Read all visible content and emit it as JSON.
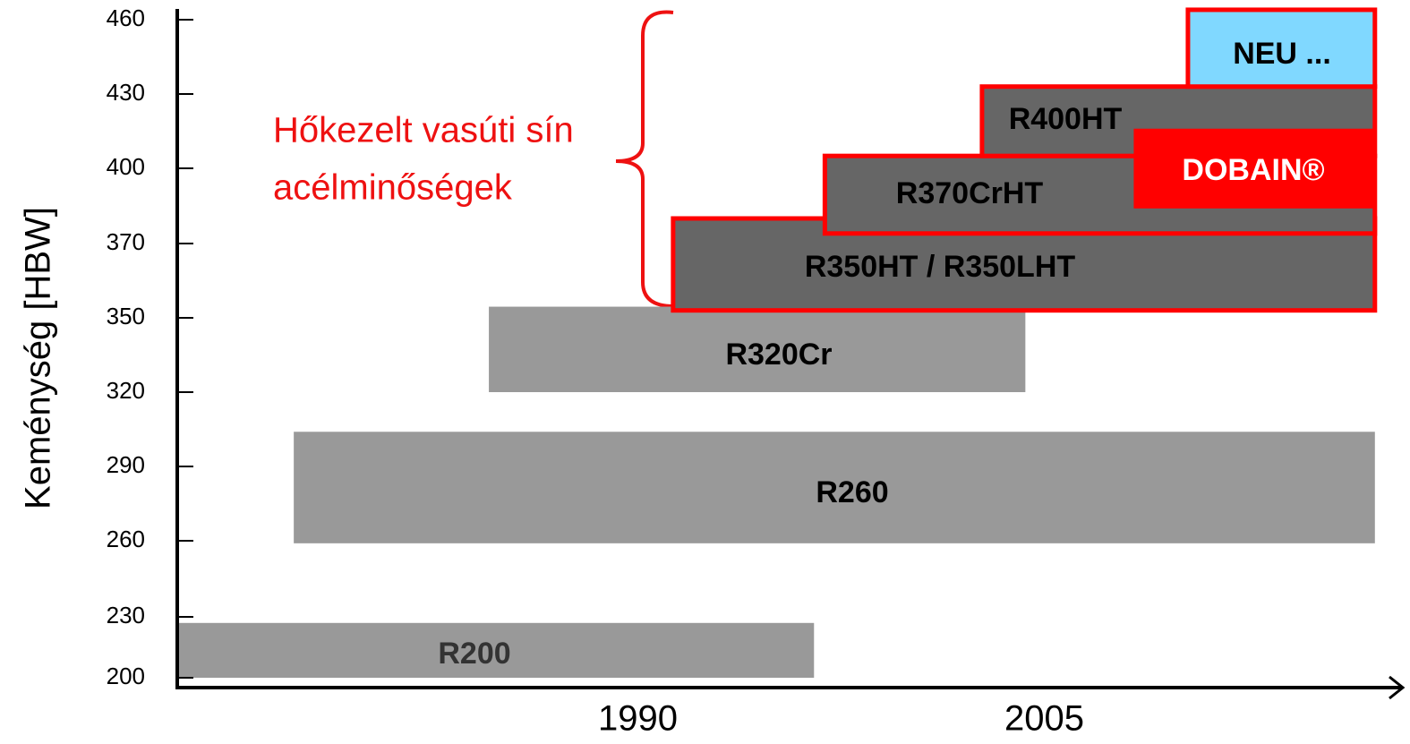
{
  "chart_data": {
    "type": "range-bar",
    "y_label": "Keménység [HBW]",
    "annotation": [
      "Hőkezelt vasúti sín",
      "acélminőségek"
    ],
    "xlim": [
      1973,
      2018
    ],
    "xticks": [
      1990,
      2005
    ],
    "ylim": [
      197,
      465
    ],
    "yticks": [
      200,
      230,
      260,
      290,
      320,
      350,
      370,
      400,
      430,
      460
    ],
    "series": [
      {
        "name": "R200",
        "start": 1973,
        "end": 1996.5,
        "low": 200,
        "high": 227,
        "color": "#999999",
        "text_color": "#333333",
        "outline": false
      },
      {
        "name": "R260",
        "start": 1977.3,
        "end": 2017.2,
        "low": 259,
        "high": 304,
        "color": "#999999",
        "text_color": "#000000",
        "outline": false
      },
      {
        "name": "R320Cr",
        "start": 1984.5,
        "end": 2004.3,
        "low": 320,
        "high": 353,
        "color": "#999999",
        "text_color": "#000000",
        "outline": false
      },
      {
        "name": "R350HT / R350LHT",
        "start": 1991.3,
        "end": 2017.2,
        "low": 352,
        "high": 380,
        "color": "#666666",
        "text_color": "#000000",
        "outline": true
      },
      {
        "name": "R370CrHT",
        "start": 1996.9,
        "end": 2017.2,
        "low": 374,
        "high": 405,
        "color": "#666666",
        "text_color": "#000000",
        "outline": true
      },
      {
        "name": "R400HT",
        "start": 2002.7,
        "end": 2017.2,
        "low": 405,
        "high": 433,
        "color": "#666666",
        "text_color": "#000000",
        "outline": true
      },
      {
        "name": "DOBAIN®",
        "start": 2008.3,
        "end": 2017.2,
        "low": 384,
        "high": 416,
        "color": "#ff0000",
        "text_color": "#ffffff",
        "outline": false
      },
      {
        "name": "NEU ...",
        "start": 2010.3,
        "end": 2017.2,
        "low": 433,
        "high": 464,
        "color": "#80d8ff",
        "text_color": "#000000",
        "outline": true
      }
    ]
  }
}
